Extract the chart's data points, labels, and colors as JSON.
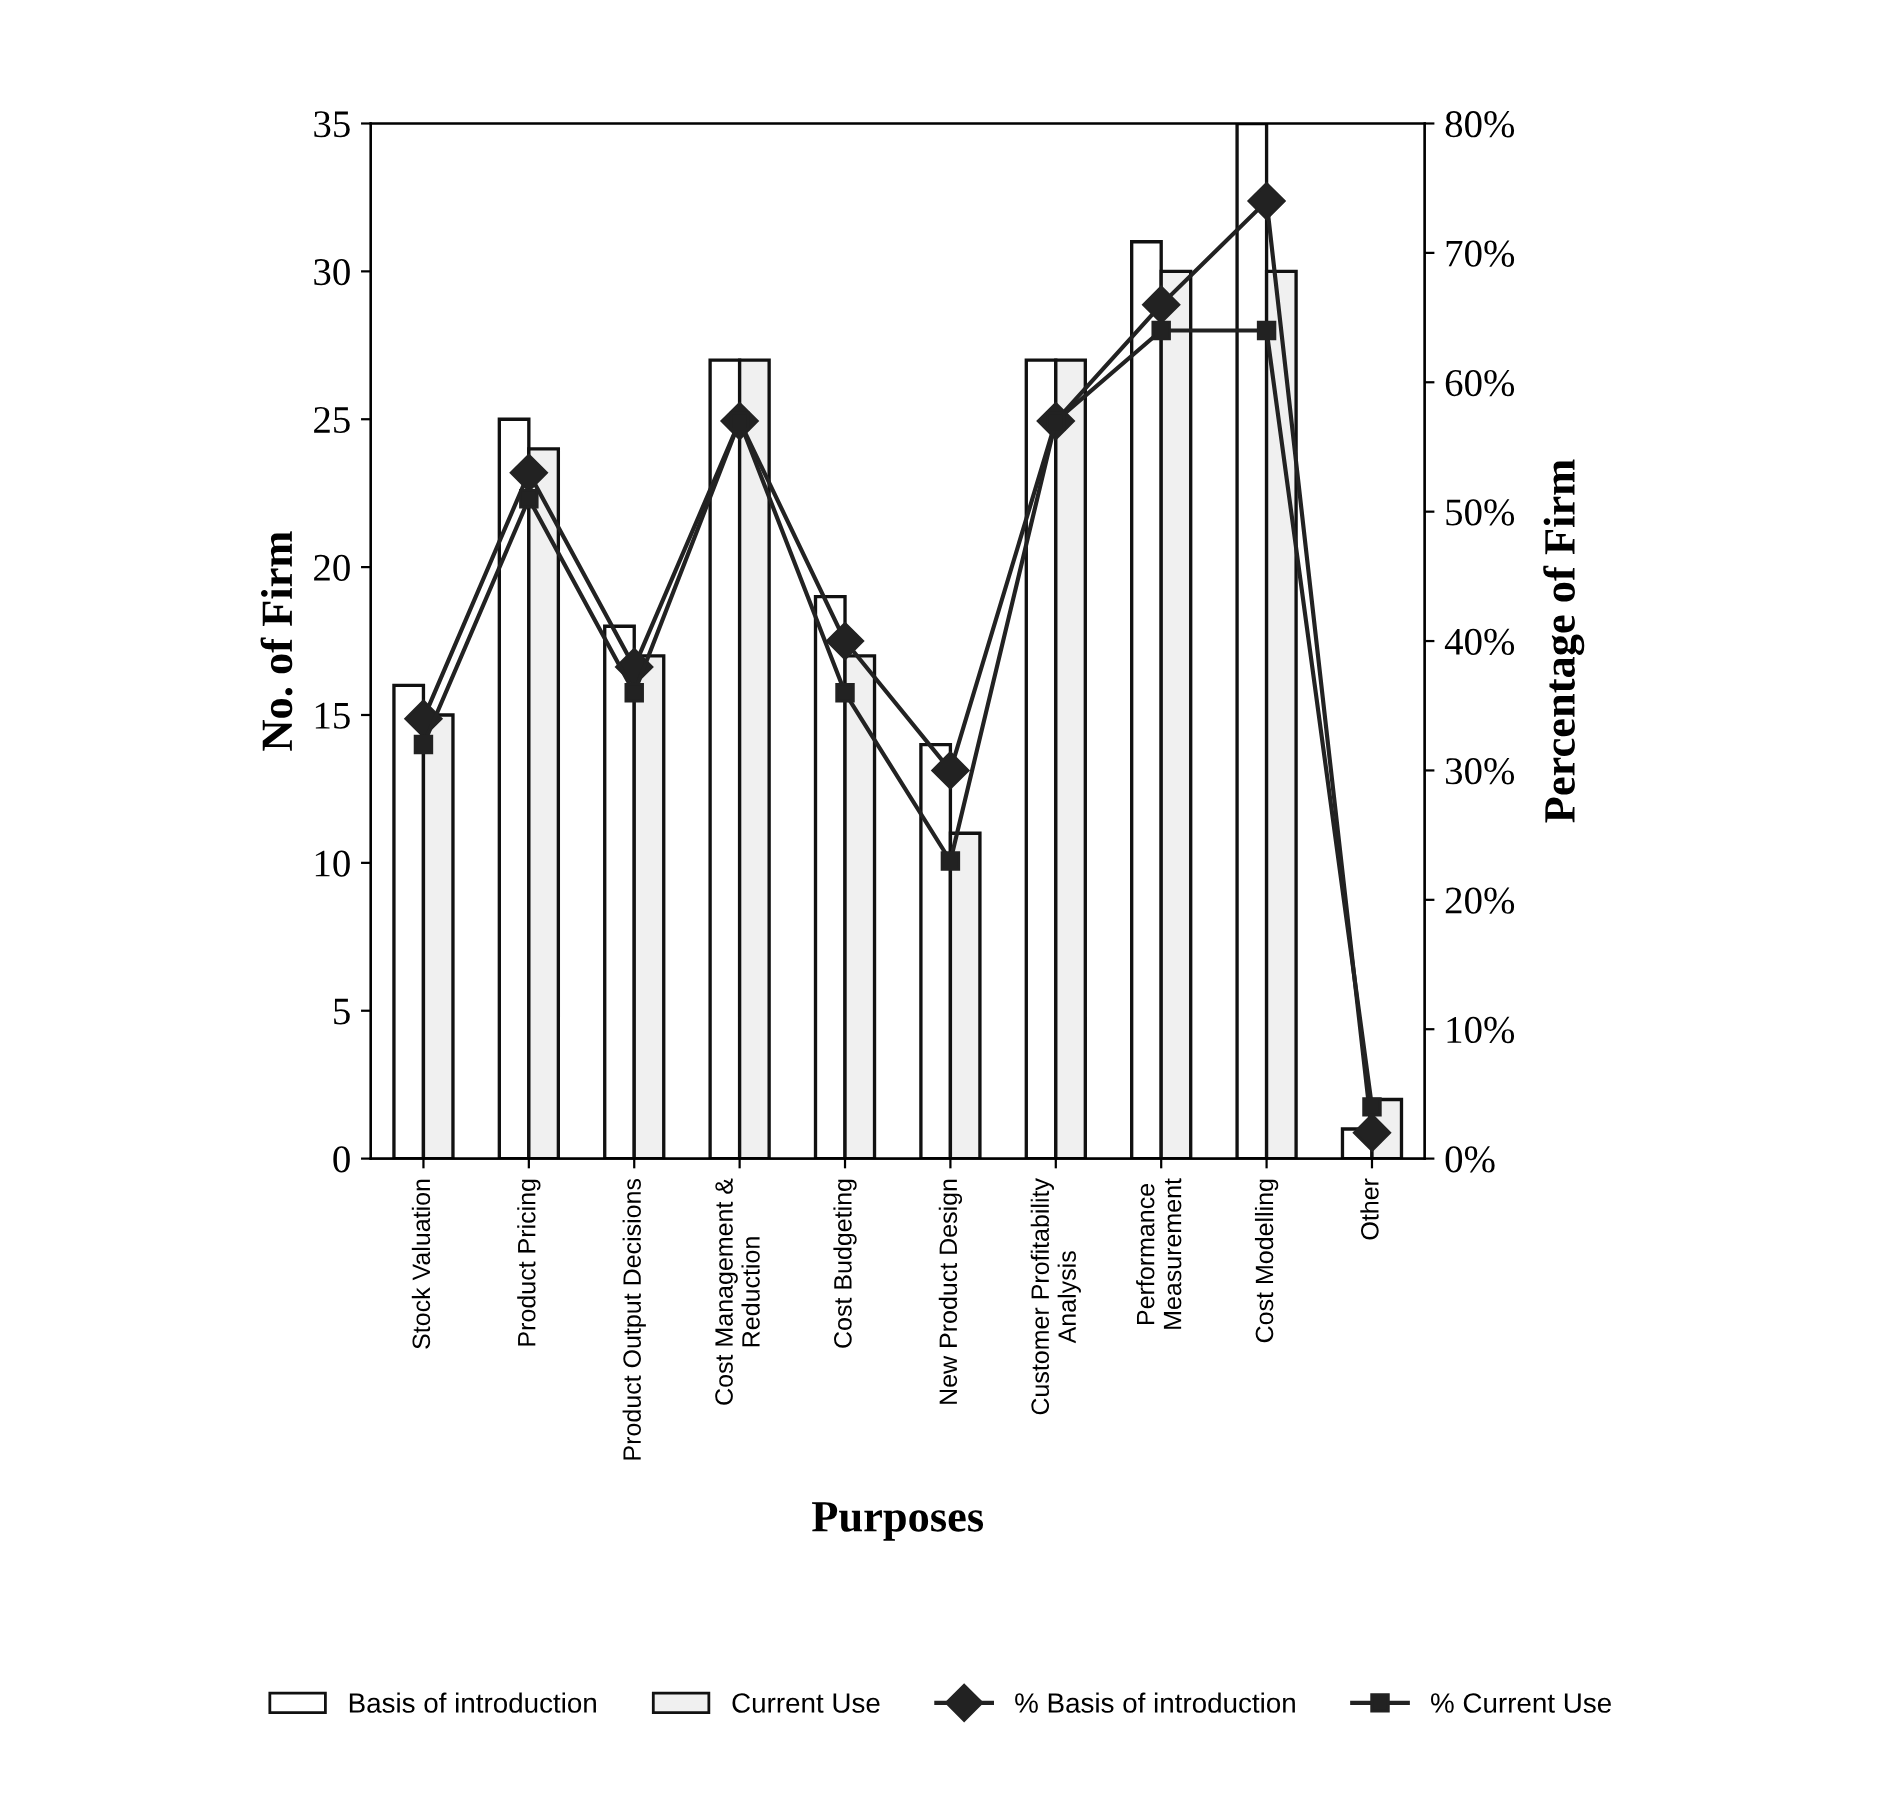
{
  "chart_data": {
    "type": "bar",
    "categories": [
      "Stock Valuation",
      "Product Pricing",
      "Product Output Decisions",
      "Cost Management &\nReduction",
      "Cost Budgeting",
      "New Product Design",
      "Customer Profitability\nAnalysis",
      "Performance\nMeasurement",
      "Cost Modelling",
      "Other"
    ],
    "series": [
      {
        "name": "Basis of introduction",
        "color": "#ffffff",
        "values": [
          16,
          25,
          18,
          27,
          19,
          14,
          27,
          31,
          35,
          1
        ]
      },
      {
        "name": "Current Use",
        "color": "#f0f0f0",
        "values": [
          15,
          24,
          17,
          27,
          17,
          11,
          27,
          30,
          30,
          2
        ]
      },
      {
        "name": "% Basis of introduction",
        "type": "line",
        "axis": "y2",
        "marker": "diamond",
        "color": "#222222",
        "values": [
          34,
          53,
          38,
          57,
          40,
          30,
          57,
          66,
          74,
          2
        ]
      },
      {
        "name": "% Current Use",
        "type": "line",
        "axis": "y2",
        "marker": "square",
        "color": "#222222",
        "values": [
          32,
          51,
          36,
          57,
          36,
          23,
          57,
          64,
          64,
          4
        ]
      }
    ],
    "xlabel": "Purposes",
    "ylabel": "No. of Firm",
    "y2label": "Percentage of Firm",
    "ylim": [
      0,
      35
    ],
    "yticks": [
      0,
      5,
      10,
      15,
      20,
      25,
      30,
      35
    ],
    "y2lim": [
      0,
      80
    ],
    "y2ticks": [
      {
        "value": 0,
        "label": "0%"
      },
      {
        "value": 10,
        "label": "10%"
      },
      {
        "value": 20,
        "label": "20%"
      },
      {
        "value": 30,
        "label": "30%"
      },
      {
        "value": 40,
        "label": "40%"
      },
      {
        "value": 50,
        "label": "50%"
      },
      {
        "value": 60,
        "label": "60%"
      },
      {
        "value": 70,
        "label": "70%"
      },
      {
        "value": 80,
        "label": "80%"
      }
    ],
    "grid": false,
    "legend": "bottom"
  }
}
